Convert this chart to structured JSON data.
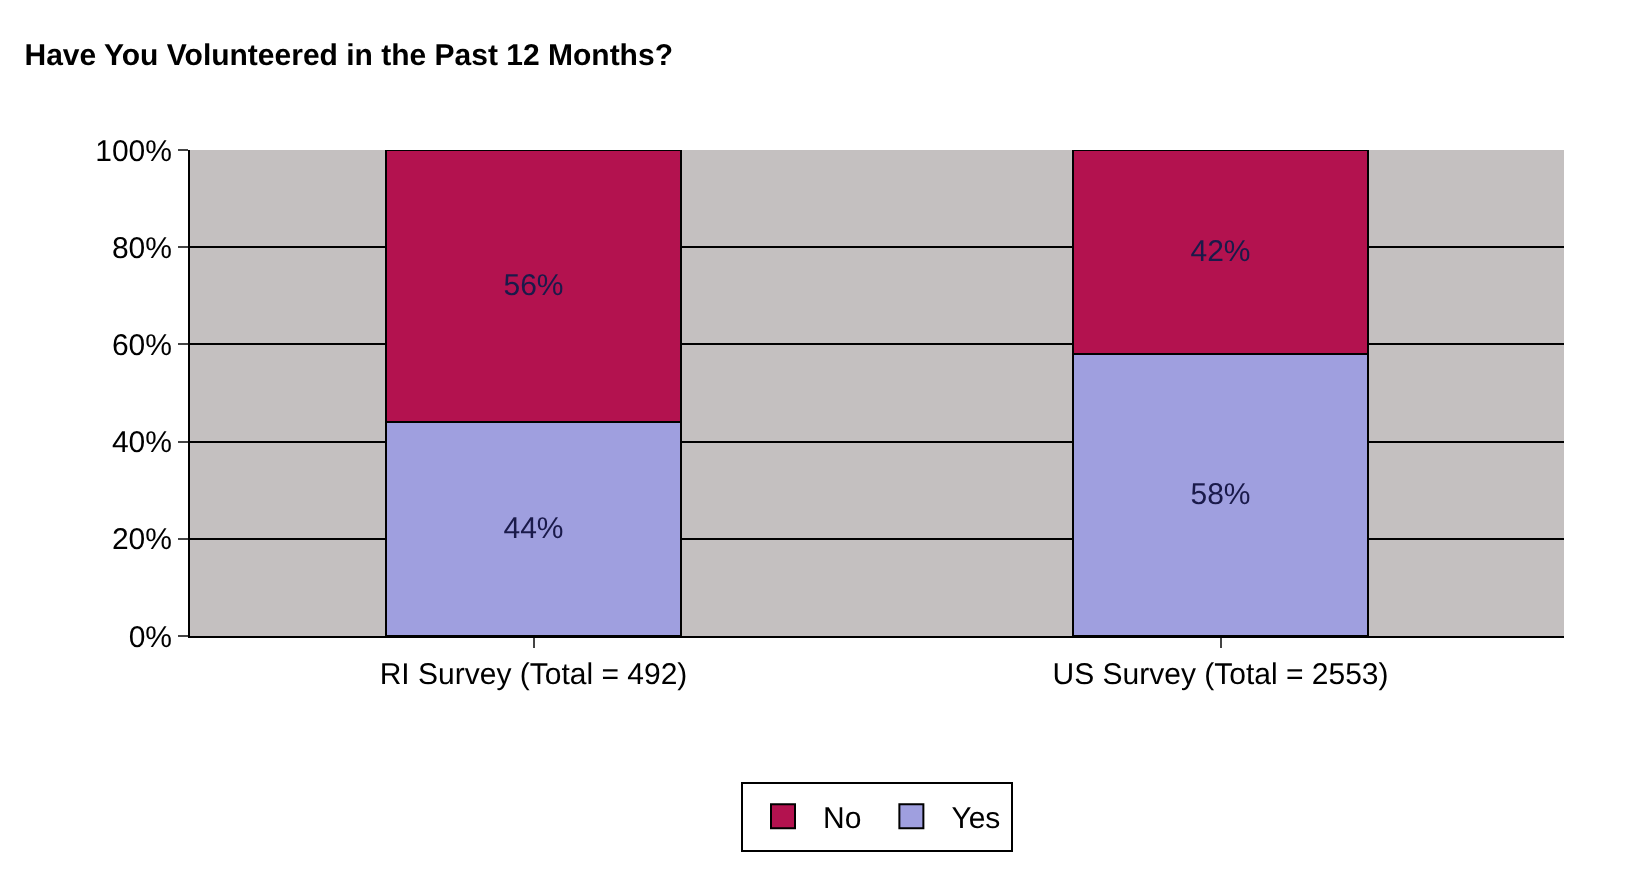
{
  "chart_data": {
    "type": "bar",
    "title": "Have You Volunteered in the Past 12 Months?",
    "categories": [
      "RI Survey (Total = 492)",
      "US Survey (Total = 2553)"
    ],
    "stacked": true,
    "series": [
      {
        "name": "Yes",
        "color": "#9f9fdf",
        "values": [
          44,
          58
        ],
        "value_labels": [
          "44%",
          "58%"
        ]
      },
      {
        "name": "No",
        "color": "#b3124f",
        "values": [
          56,
          42
        ],
        "value_labels": [
          "56%",
          "42%"
        ]
      }
    ],
    "ylim": [
      0,
      100
    ],
    "yticks": [
      {
        "value": 0,
        "label": "0%"
      },
      {
        "value": 20,
        "label": "20%"
      },
      {
        "value": 40,
        "label": "40%"
      },
      {
        "value": 60,
        "label": "60%"
      },
      {
        "value": 80,
        "label": "80%"
      },
      {
        "value": 100,
        "label": "100%"
      }
    ],
    "grid": "y",
    "legend": "bottom"
  }
}
